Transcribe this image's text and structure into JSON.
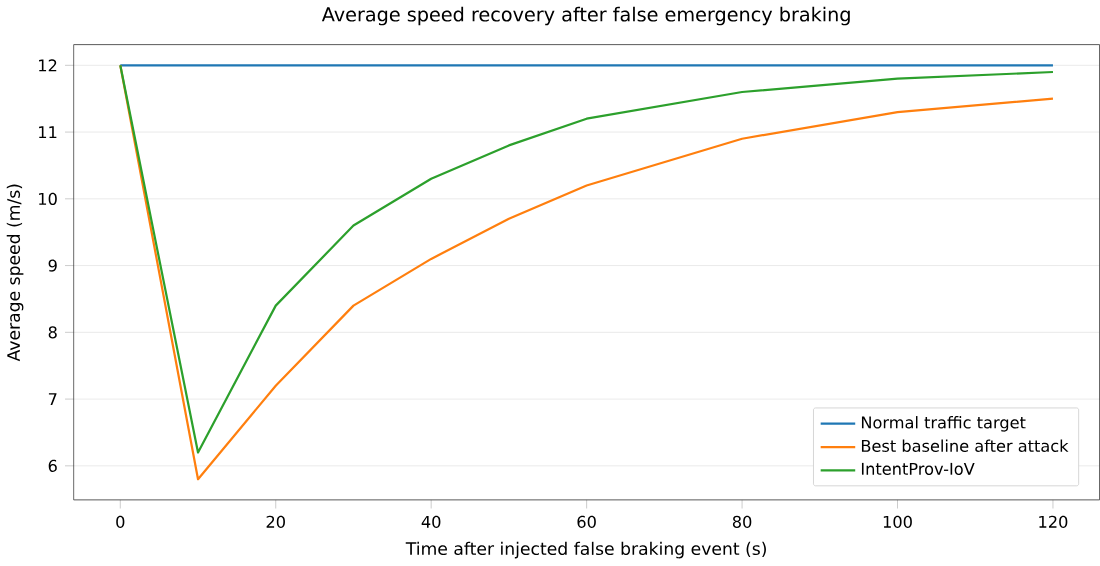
{
  "chart_data": {
    "type": "line",
    "title": "Average speed recovery after false emergency braking",
    "xlabel": "Time after injected false braking event (s)",
    "ylabel": "Average speed (m/s)",
    "x": [
      0,
      10,
      20,
      30,
      40,
      50,
      60,
      80,
      100,
      120
    ],
    "series": [
      {
        "name": "Normal traffic target",
        "color": "#1f77b4",
        "values": [
          12,
          12,
          12,
          12,
          12,
          12,
          12,
          12,
          12,
          12
        ]
      },
      {
        "name": "Best baseline after attack",
        "color": "#ff7f0e",
        "values": [
          12,
          5.8,
          7.2,
          8.4,
          9.1,
          9.7,
          10.2,
          10.9,
          11.3,
          11.5
        ]
      },
      {
        "name": "IntentProv-IoV",
        "color": "#2ca02c",
        "values": [
          12,
          6.2,
          8.4,
          9.6,
          10.3,
          10.8,
          11.2,
          11.6,
          11.8,
          11.9
        ]
      }
    ],
    "xlim": [
      -6,
      126
    ],
    "ylim": [
      5.49,
      12.31
    ],
    "xticks": [
      0,
      20,
      40,
      60,
      80,
      100,
      120
    ],
    "yticks": [
      6,
      7,
      8,
      9,
      10,
      11,
      12
    ],
    "grid": "y",
    "legend": "bottom right",
    "marker": "none",
    "line_style": "solid"
  }
}
